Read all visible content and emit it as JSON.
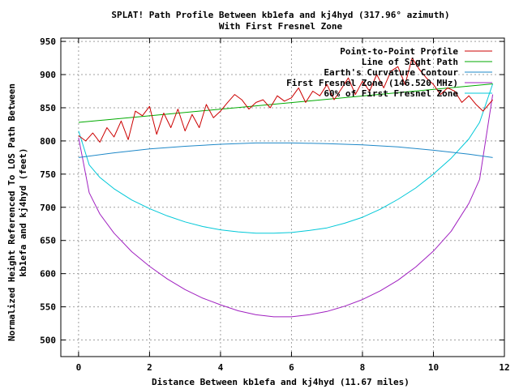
{
  "chart_data": {
    "type": "line",
    "title": "SPLAT! Path Profile Between kb1efa and kj4hyd (317.96° azimuth)",
    "subtitle": "With First Fresnel Zone",
    "xlabel": "Distance Between kb1efa and kj4hyd (11.67 miles)",
    "ylabel": "Normalized Height Referenced To LOS Path Between",
    "ylabel2": "kb1efa and kj4hyd (feet)",
    "xlim": [
      -0.5,
      12
    ],
    "ylim": [
      475,
      955
    ],
    "xticks": [
      0,
      2,
      4,
      6,
      8,
      10,
      12
    ],
    "yticks": [
      500,
      550,
      600,
      650,
      700,
      750,
      800,
      850,
      900,
      950
    ],
    "grid": true,
    "legend_position": "top-right",
    "path_length": 11.67,
    "series": [
      {
        "name": "Point-to-Point Profile",
        "color": "#cc0000",
        "x": [
          0,
          0.2,
          0.4,
          0.6,
          0.8,
          1.0,
          1.2,
          1.4,
          1.6,
          1.8,
          2.0,
          2.2,
          2.4,
          2.6,
          2.8,
          3.0,
          3.2,
          3.4,
          3.6,
          3.8,
          4.0,
          4.2,
          4.4,
          4.6,
          4.8,
          5.0,
          5.2,
          5.4,
          5.6,
          5.8,
          6.0,
          6.2,
          6.4,
          6.6,
          6.8,
          7.0,
          7.2,
          7.4,
          7.6,
          7.8,
          8.0,
          8.2,
          8.4,
          8.6,
          8.8,
          9.0,
          9.2,
          9.4,
          9.6,
          9.8,
          10.0,
          10.2,
          10.4,
          10.6,
          10.8,
          11.0,
          11.2,
          11.4,
          11.67
        ],
        "y": [
          808,
          800,
          812,
          798,
          820,
          806,
          830,
          802,
          845,
          838,
          852,
          810,
          842,
          820,
          848,
          815,
          840,
          820,
          855,
          835,
          845,
          858,
          870,
          862,
          848,
          858,
          862,
          850,
          868,
          860,
          865,
          880,
          858,
          875,
          868,
          885,
          862,
          878,
          895,
          870,
          890,
          875,
          900,
          880,
          905,
          912,
          885,
          925,
          908,
          895,
          885,
          870,
          880,
          875,
          858,
          868,
          855,
          845,
          862
        ]
      },
      {
        "name": "Line of Sight Path",
        "color": "#00aa00",
        "x": [
          0,
          11.67
        ],
        "y": [
          828,
          886
        ]
      },
      {
        "name": "Earth's Curvature Contour",
        "color": "#1e88c8",
        "x": [
          0,
          1,
          2,
          3,
          4,
          5,
          6,
          7,
          8,
          9,
          10,
          11,
          11.67
        ],
        "y": [
          775,
          782,
          788,
          792,
          795,
          797,
          797,
          796,
          794,
          791,
          786,
          780,
          775
        ]
      },
      {
        "name": "First Fresnel Zone (146.520 MHz)",
        "color": "#a020c0",
        "x": [
          0,
          0.3,
          0.6,
          1.0,
          1.5,
          2.0,
          2.5,
          3.0,
          3.5,
          4.0,
          4.5,
          5.0,
          5.5,
          6.0,
          6.5,
          7.0,
          7.5,
          8.0,
          8.5,
          9.0,
          9.5,
          10.0,
          10.5,
          11.0,
          11.3,
          11.67
        ],
        "y": [
          805,
          722,
          690,
          661,
          633,
          611,
          592,
          576,
          563,
          553,
          544,
          538,
          535,
          535,
          538,
          543,
          551,
          561,
          574,
          590,
          610,
          634,
          664,
          706,
          742,
          870
        ]
      },
      {
        "name": "60% of First Fresnel Zone",
        "color": "#00c8d8",
        "x": [
          0,
          0.3,
          0.6,
          1.0,
          1.5,
          2.0,
          2.5,
          3.0,
          3.5,
          4.0,
          4.5,
          5.0,
          5.5,
          6.0,
          6.5,
          7.0,
          7.5,
          8.0,
          8.5,
          9.0,
          9.5,
          10.0,
          10.5,
          11.0,
          11.3,
          11.67
        ],
        "y": [
          815,
          764,
          745,
          728,
          711,
          698,
          687,
          678,
          671,
          666,
          663,
          661,
          661,
          662,
          665,
          669,
          676,
          685,
          697,
          712,
          729,
          750,
          774,
          803,
          828,
          886
        ]
      }
    ]
  }
}
